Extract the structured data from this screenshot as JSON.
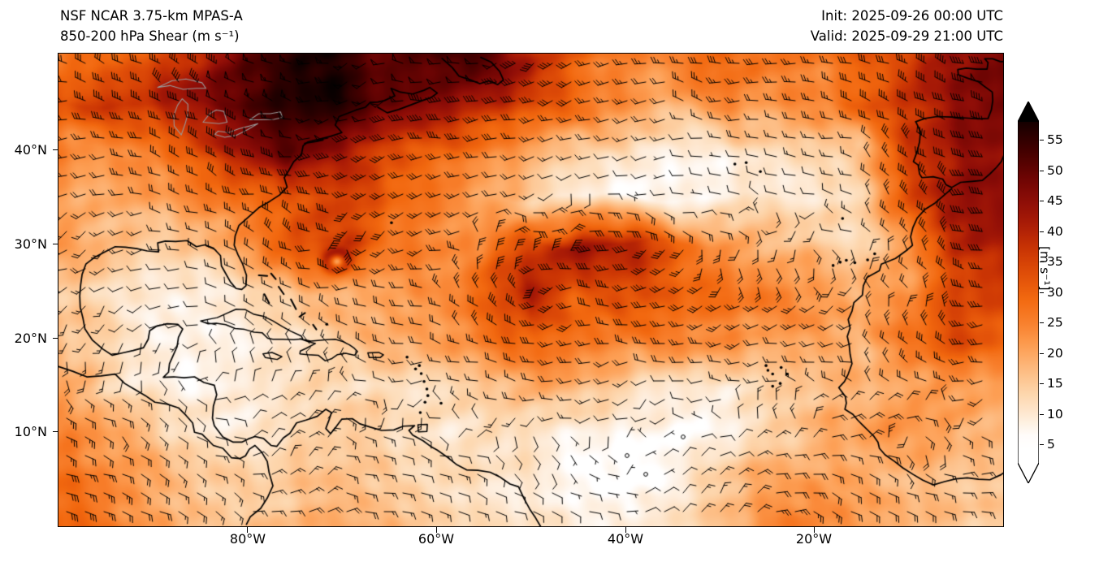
{
  "header": {
    "model_line": "NSF NCAR 3.75-km MPAS-A",
    "product_line": "850-200 hPa Shear (m s⁻¹)",
    "init_line": "Init: 2025-09-26 00:00 UTC",
    "valid_line": "Valid: 2025-09-29 21:00 UTC"
  },
  "chart_data": {
    "type": "heatmap",
    "title": "NSF NCAR 3.75-km MPAS-A — 850-200 hPa Shear (m s⁻¹)",
    "overlay": "wind_barbs",
    "init_time": "2025-09-26 00:00 UTC",
    "valid_time": "2025-09-29 21:00 UTC",
    "x_axis": {
      "ticks": [
        "80°W",
        "60°W",
        "40°W",
        "20°W"
      ],
      "tick_lons": [
        -80,
        -60,
        -40,
        -20
      ],
      "range_lon": [
        -100,
        0
      ]
    },
    "y_axis": {
      "ticks": [
        "40°N",
        "30°N",
        "20°N",
        "10°N"
      ],
      "tick_lats": [
        40,
        30,
        20,
        10
      ],
      "range_lat": [
        0,
        50.3
      ]
    },
    "colorbar": {
      "label": "[m s⁻¹]",
      "ticks": [
        55,
        50,
        45,
        40,
        35,
        30,
        25,
        20,
        15,
        10,
        5
      ],
      "range": [
        0,
        60
      ],
      "extend": "both",
      "colormap": [
        {
          "v": 0,
          "c": "#ffffff"
        },
        {
          "v": 6,
          "c": "#ffffff"
        },
        {
          "v": 9,
          "c": "#feeedd"
        },
        {
          "v": 13,
          "c": "#fdd8b0"
        },
        {
          "v": 17,
          "c": "#fdbd84"
        },
        {
          "v": 21,
          "c": "#fd9f54"
        },
        {
          "v": 25,
          "c": "#f87f2c"
        },
        {
          "v": 29,
          "c": "#f2680f"
        },
        {
          "v": 33,
          "c": "#e04e08"
        },
        {
          "v": 37,
          "c": "#cb3504"
        },
        {
          "v": 41,
          "c": "#ab1c06"
        },
        {
          "v": 45,
          "c": "#8d0d07"
        },
        {
          "v": 49,
          "c": "#6b0403"
        },
        {
          "v": 53,
          "c": "#450000"
        },
        {
          "v": 57,
          "c": "#1f0000"
        },
        {
          "v": 60,
          "c": "#000000"
        }
      ]
    },
    "shear_grid": {
      "units": "m s⁻¹",
      "lons": [
        -100,
        -95,
        -90,
        -85,
        -80,
        -75,
        -70,
        -65,
        -60,
        -55,
        -50,
        -45,
        -40,
        -35,
        -30,
        -25,
        -20,
        -15,
        -10,
        -5,
        0
      ],
      "lats": [
        50,
        45,
        40,
        35,
        30,
        25,
        20,
        15,
        10,
        5,
        0
      ],
      "values": [
        [
          25,
          28,
          33,
          42,
          50,
          55,
          57,
          50,
          55,
          52,
          38,
          30,
          26,
          25,
          30,
          27,
          25,
          30,
          35,
          45,
          48
        ],
        [
          33,
          35,
          38,
          45,
          52,
          57,
          57,
          48,
          45,
          42,
          35,
          25,
          22,
          18,
          24,
          22,
          24,
          30,
          38,
          45,
          50
        ],
        [
          24,
          22,
          24,
          32,
          45,
          50,
          42,
          33,
          28,
          24,
          22,
          15,
          12,
          8,
          10,
          12,
          14,
          16,
          36,
          44,
          46
        ],
        [
          22,
          20,
          20,
          24,
          30,
          33,
          36,
          30,
          25,
          20,
          14,
          10,
          7,
          6,
          8,
          10,
          10,
          14,
          30,
          42,
          44
        ],
        [
          22,
          16,
          14,
          16,
          22,
          34,
          36,
          26,
          24,
          24,
          36,
          42,
          40,
          30,
          24,
          20,
          15,
          12,
          24,
          40,
          42
        ],
        [
          16,
          12,
          10,
          10,
          12,
          16,
          20,
          22,
          24,
          30,
          42,
          32,
          33,
          31,
          28,
          25,
          22,
          18,
          22,
          34,
          36
        ],
        [
          18,
          14,
          8,
          7,
          10,
          12,
          14,
          18,
          20,
          28,
          30,
          26,
          25,
          24,
          24,
          22,
          20,
          18,
          26,
          34,
          30
        ],
        [
          20,
          14,
          10,
          7,
          9,
          11,
          13,
          12,
          11,
          14,
          18,
          18,
          14,
          10,
          8,
          12,
          16,
          18,
          20,
          22,
          20
        ],
        [
          26,
          22,
          16,
          10,
          10,
          14,
          16,
          13,
          10,
          13,
          12,
          9,
          7,
          6,
          7,
          13,
          18,
          20,
          22,
          18,
          16
        ],
        [
          28,
          25,
          20,
          16,
          13,
          15,
          18,
          16,
          13,
          10,
          9,
          7,
          6,
          8,
          14,
          20,
          22,
          20,
          18,
          16,
          15
        ],
        [
          30,
          27,
          22,
          18,
          15,
          17,
          20,
          18,
          15,
          12,
          10,
          9,
          8,
          12,
          16,
          22,
          24,
          20,
          18,
          16,
          15
        ]
      ]
    }
  }
}
